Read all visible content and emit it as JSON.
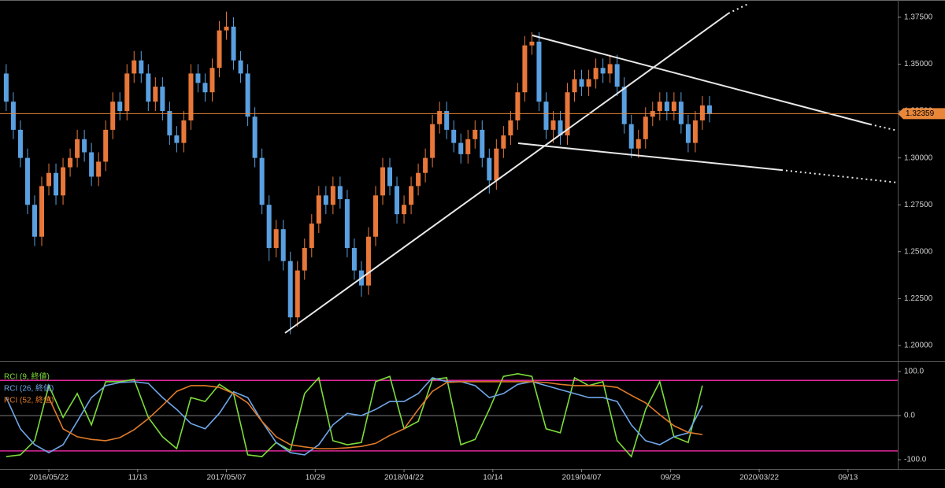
{
  "chart_data": [
    {
      "type": "candlestick",
      "up_color": "#e8773a",
      "down_color": "#5aa0e0",
      "x": [
        -12,
        -10,
        -8,
        -6,
        -4,
        -2,
        0,
        2,
        4,
        6,
        8,
        10,
        12,
        14,
        16,
        18,
        20,
        22,
        24,
        26,
        28,
        30,
        32,
        34,
        36,
        38,
        40,
        42,
        44,
        46,
        48,
        50,
        52,
        54,
        56,
        58,
        60,
        62,
        64,
        66,
        68,
        70,
        72,
        74,
        76,
        78,
        80,
        82,
        84,
        86,
        88,
        90,
        92,
        94,
        96,
        98,
        100,
        102,
        104,
        106,
        108,
        110,
        112,
        114,
        116,
        118,
        120,
        122,
        124,
        126,
        128,
        130,
        132,
        134,
        136,
        138,
        140,
        142,
        144,
        146,
        148,
        150,
        152,
        154,
        156,
        158,
        160,
        162,
        164,
        166,
        168,
        170,
        172,
        174,
        176,
        178,
        180,
        182,
        184,
        186
      ],
      "open": [
        1.345,
        1.33,
        1.315,
        1.3,
        1.275,
        1.258,
        1.285,
        1.292,
        1.28,
        1.295,
        1.3,
        1.31,
        1.303,
        1.29,
        1.298,
        1.315,
        1.33,
        1.325,
        1.345,
        1.352,
        1.345,
        1.33,
        1.338,
        1.325,
        1.312,
        1.308,
        1.32,
        1.345,
        1.34,
        1.335,
        1.348,
        1.368,
        1.37,
        1.352,
        1.345,
        1.322,
        1.3,
        1.275,
        1.252,
        1.262,
        1.245,
        1.215,
        1.24,
        1.252,
        1.265,
        1.28,
        1.275,
        1.285,
        1.278,
        1.252,
        1.24,
        1.232,
        1.258,
        1.28,
        1.295,
        1.285,
        1.27,
        1.275,
        1.285,
        1.292,
        1.3,
        1.318,
        1.325,
        1.315,
        1.308,
        1.302,
        1.31,
        1.315,
        1.3,
        1.288,
        1.305,
        1.312,
        1.32,
        1.335,
        1.36,
        1.362,
        1.33,
        1.315,
        1.32,
        1.312,
        1.335,
        1.342,
        1.338,
        1.342,
        1.348,
        1.345,
        1.35,
        1.338,
        1.318,
        1.305,
        1.31,
        1.322,
        1.325,
        1.33,
        1.325,
        1.33,
        1.318,
        1.308,
        1.32,
        1.328
      ],
      "high": [
        1.35,
        1.335,
        1.32,
        1.305,
        1.28,
        1.29,
        1.297,
        1.297,
        1.3,
        1.305,
        1.315,
        1.315,
        1.308,
        1.303,
        1.32,
        1.335,
        1.335,
        1.35,
        1.357,
        1.357,
        1.35,
        1.343,
        1.343,
        1.33,
        1.317,
        1.325,
        1.35,
        1.35,
        1.345,
        1.353,
        1.373,
        1.378,
        1.375,
        1.357,
        1.35,
        1.327,
        1.305,
        1.28,
        1.267,
        1.267,
        1.25,
        1.245,
        1.257,
        1.27,
        1.285,
        1.285,
        1.29,
        1.29,
        1.283,
        1.257,
        1.245,
        1.263,
        1.285,
        1.3,
        1.3,
        1.29,
        1.28,
        1.29,
        1.297,
        1.305,
        1.323,
        1.33,
        1.33,
        1.32,
        1.313,
        1.315,
        1.32,
        1.32,
        1.305,
        1.31,
        1.317,
        1.325,
        1.34,
        1.365,
        1.367,
        1.367,
        1.335,
        1.325,
        1.325,
        1.34,
        1.347,
        1.347,
        1.347,
        1.353,
        1.353,
        1.355,
        1.355,
        1.343,
        1.323,
        1.315,
        1.327,
        1.33,
        1.335,
        1.335,
        1.335,
        1.335,
        1.323,
        1.325,
        1.333,
        1.333
      ],
      "low": [
        1.325,
        1.31,
        1.295,
        1.27,
        1.253,
        1.253,
        1.28,
        1.275,
        1.275,
        1.29,
        1.295,
        1.298,
        1.285,
        1.285,
        1.293,
        1.31,
        1.32,
        1.32,
        1.34,
        1.34,
        1.325,
        1.325,
        1.32,
        1.307,
        1.303,
        1.303,
        1.315,
        1.335,
        1.33,
        1.33,
        1.343,
        1.363,
        1.347,
        1.34,
        1.317,
        1.295,
        1.27,
        1.245,
        1.247,
        1.24,
        1.206,
        1.21,
        1.235,
        1.247,
        1.26,
        1.27,
        1.27,
        1.273,
        1.247,
        1.235,
        1.226,
        1.227,
        1.253,
        1.275,
        1.28,
        1.265,
        1.265,
        1.27,
        1.28,
        1.287,
        1.295,
        1.313,
        1.31,
        1.303,
        1.297,
        1.297,
        1.305,
        1.295,
        1.281,
        1.283,
        1.3,
        1.307,
        1.315,
        1.33,
        1.355,
        1.325,
        1.31,
        1.308,
        1.307,
        1.307,
        1.33,
        1.333,
        1.333,
        1.337,
        1.34,
        1.34,
        1.333,
        1.313,
        1.3,
        1.3,
        1.305,
        1.317,
        1.32,
        1.32,
        1.32,
        1.313,
        1.303,
        1.303,
        1.315,
        1.319
      ],
      "close": [
        1.33,
        1.315,
        1.3,
        1.275,
        1.258,
        1.285,
        1.292,
        1.28,
        1.295,
        1.3,
        1.31,
        1.303,
        1.29,
        1.298,
        1.315,
        1.33,
        1.325,
        1.345,
        1.352,
        1.345,
        1.33,
        1.338,
        1.325,
        1.312,
        1.308,
        1.32,
        1.345,
        1.34,
        1.335,
        1.348,
        1.368,
        1.37,
        1.352,
        1.345,
        1.322,
        1.3,
        1.275,
        1.252,
        1.262,
        1.245,
        1.215,
        1.24,
        1.252,
        1.265,
        1.28,
        1.275,
        1.285,
        1.278,
        1.252,
        1.24,
        1.232,
        1.258,
        1.28,
        1.295,
        1.285,
        1.27,
        1.275,
        1.285,
        1.292,
        1.3,
        1.318,
        1.325,
        1.315,
        1.308,
        1.302,
        1.31,
        1.315,
        1.3,
        1.288,
        1.305,
        1.312,
        1.32,
        1.335,
        1.36,
        1.362,
        1.33,
        1.315,
        1.32,
        1.312,
        1.335,
        1.342,
        1.338,
        1.342,
        1.348,
        1.345,
        1.35,
        1.338,
        1.318,
        1.305,
        1.31,
        1.322,
        1.325,
        1.33,
        1.325,
        1.33,
        1.318,
        1.308,
        1.32,
        1.328,
        1.32359
      ],
      "price_line": {
        "value": 1.32359,
        "label": "1.32359",
        "color": "#e8873a"
      },
      "xlim": [
        -13.75,
        239
      ],
      "ylim": [
        1.192,
        1.3842
      ],
      "yticks": [
        {
          "value": 1.2,
          "label": "1.20000"
        },
        {
          "value": 1.225,
          "label": "1.22500"
        },
        {
          "value": 1.25,
          "label": "1.25000"
        },
        {
          "value": 1.275,
          "label": "1.27500"
        },
        {
          "value": 1.3,
          "label": "1.30000"
        },
        {
          "value": 1.325,
          "label": "1.32500"
        },
        {
          "value": 1.35,
          "label": "1.35000"
        },
        {
          "value": 1.375,
          "label": "1.37500"
        }
      ]
    },
    {
      "type": "line",
      "x": [
        -12,
        -8,
        -4,
        0,
        4,
        8,
        12,
        16,
        20,
        24,
        28,
        32,
        36,
        40,
        44,
        48,
        52,
        56,
        60,
        64,
        68,
        72,
        76,
        80,
        84,
        88,
        92,
        96,
        100,
        104,
        108,
        112,
        116,
        120,
        124,
        128,
        132,
        136,
        140,
        144,
        148,
        152,
        156,
        160,
        164,
        168,
        172,
        176,
        180,
        184
      ],
      "series": [
        {
          "name": "RCI (9, 終値)",
          "color": "#7ddc3a",
          "values": [
            -93,
            -89,
            -57,
            68,
            -4,
            50,
            -21,
            77,
            77,
            82,
            -4,
            -48,
            -75,
            41,
            32,
            71,
            50,
            -89,
            -93,
            -61,
            -79,
            50,
            86,
            -57,
            -66,
            -61,
            77,
            89,
            -30,
            -13,
            82,
            86,
            -66,
            -54,
            14,
            89,
            95,
            89,
            -30,
            -39,
            86,
            68,
            77,
            -57,
            -93,
            14,
            77,
            -48,
            -61,
            68
          ]
        },
        {
          "name": "RCI (26, 終値)",
          "color": "#6fa7e8",
          "values": [
            41,
            -30,
            -66,
            -84,
            -66,
            -13,
            41,
            68,
            75,
            77,
            73,
            41,
            14,
            -18,
            -30,
            5,
            54,
            41,
            -13,
            -61,
            -84,
            -89,
            -66,
            -21,
            5,
            0,
            14,
            32,
            32,
            50,
            86,
            77,
            77,
            68,
            41,
            50,
            71,
            77,
            68,
            59,
            50,
            41,
            41,
            32,
            -21,
            -57,
            -66,
            -48,
            -39,
            23
          ]
        },
        {
          "name": "RCI (52, 終値)",
          "color": "#e07b2a",
          "values": [
            null,
            null,
            null,
            41,
            -30,
            -48,
            -54,
            -57,
            -50,
            -32,
            -7,
            23,
            55,
            68,
            68,
            64,
            50,
            29,
            -13,
            -48,
            -66,
            -71,
            -75,
            -75,
            -73,
            -70,
            -63,
            -45,
            -30,
            14,
            55,
            75,
            77,
            77,
            77,
            77,
            77,
            77,
            75,
            71,
            68,
            68,
            68,
            64,
            46,
            29,
            2,
            -23,
            -38,
            -43
          ]
        }
      ],
      "levels": [
        80,
        -80
      ],
      "xlim": [
        -13.75,
        239
      ],
      "ylim": [
        -121.4,
        117.9
      ],
      "yticks": [
        {
          "value": 100,
          "label": "100.0"
        },
        {
          "value": 0,
          "label": "0.0"
        },
        {
          "value": -100,
          "label": "-100.0"
        }
      ],
      "xticks": [
        {
          "value": 0,
          "label": "2016/05/22"
        },
        {
          "value": 25,
          "label": "11/13"
        },
        {
          "value": 50,
          "label": "2017/05/07"
        },
        {
          "value": 75,
          "label": "10/29"
        },
        {
          "value": 100,
          "label": "2018/04/22"
        },
        {
          "value": 125,
          "label": "10/14"
        },
        {
          "value": 150,
          "label": "2019/04/07"
        },
        {
          "value": 175,
          "label": "09/29"
        },
        {
          "value": 200,
          "label": "2020/03/22"
        },
        {
          "value": 225,
          "label": "09/13"
        }
      ]
    }
  ]
}
